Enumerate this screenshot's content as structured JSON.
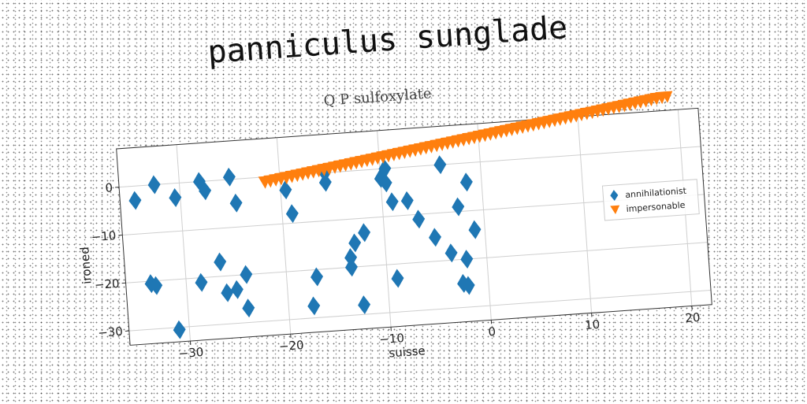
{
  "chart_data": {
    "type": "scatter",
    "title": "panniculus sunglade",
    "subtitle": "Q P sulfoxylate",
    "xlabel": "suisse",
    "ylabel": "ironed",
    "xlim": [
      -36,
      22
    ],
    "ylim": [
      -33,
      8
    ],
    "xticks": [
      -30,
      -20,
      -10,
      0,
      10,
      20
    ],
    "yticks": [
      0,
      -10,
      -20,
      -30
    ],
    "xtick_labels": [
      "−30",
      "−20",
      "−10",
      "0",
      "10",
      "20"
    ],
    "ytick_labels": [
      "0",
      "−10",
      "−20",
      "−30"
    ],
    "grid": true,
    "legend_position": "right",
    "series": [
      {
        "name": "annihilationist",
        "marker": "diamond",
        "color": "#1f77b4",
        "points": [
          [
            -34.5,
            -3
          ],
          [
            -33.5,
            -20.5
          ],
          [
            -33,
            -21
          ],
          [
            -32.5,
            0
          ],
          [
            -31,
            -30.5
          ],
          [
            -30.5,
            -3
          ],
          [
            -28.5,
            -21
          ],
          [
            -28,
            0
          ],
          [
            -27.5,
            -2
          ],
          [
            -26.5,
            -17
          ],
          [
            -26,
            -23.5
          ],
          [
            -25,
            0.5
          ],
          [
            -25,
            -23
          ],
          [
            -24.5,
            -5
          ],
          [
            -24,
            -20
          ],
          [
            -24,
            -27
          ],
          [
            -19.5,
            -3
          ],
          [
            -19,
            -8
          ],
          [
            -17.5,
            -27.5
          ],
          [
            -17,
            -21.5
          ],
          [
            -15.5,
            0
          ],
          [
            -15.5,
            -2
          ],
          [
            -13.5,
            -20
          ],
          [
            -13.5,
            -18
          ],
          [
            -13,
            -15
          ],
          [
            -12.5,
            -28
          ],
          [
            -12,
            -13
          ],
          [
            -10,
            -2
          ],
          [
            -9.5,
            0
          ],
          [
            -9.5,
            -3
          ],
          [
            -9,
            -7
          ],
          [
            -9,
            -23
          ],
          [
            -7.5,
            -7
          ],
          [
            -6.5,
            -11
          ],
          [
            -5,
            -15
          ],
          [
            -4,
            0
          ],
          [
            -3.5,
            -18.5
          ],
          [
            -2.5,
            -25
          ],
          [
            -2.5,
            -9
          ],
          [
            -2,
            -20
          ],
          [
            -2,
            -25.5
          ],
          [
            -1.5,
            -4
          ],
          [
            -1,
            -14
          ]
        ]
      },
      {
        "name": "impersonable",
        "marker": "triangle-down",
        "color": "#ff7f0e",
        "start": [
          -21.5,
          -1
        ],
        "end": [
          19,
          11
        ],
        "count": 76
      }
    ]
  }
}
